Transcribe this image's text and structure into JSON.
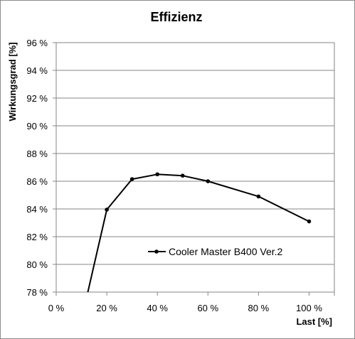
{
  "chart_data": {
    "type": "line",
    "title": "Effizienz",
    "xlabel": "Last [%]",
    "ylabel": "Wirkungsgrad [%]",
    "xlim": [
      0,
      110
    ],
    "ylim": [
      78,
      96
    ],
    "x_ticks": [
      0,
      20,
      40,
      60,
      80,
      100
    ],
    "x_tick_labels": [
      "0 %",
      "20 %",
      "40 %",
      "60 %",
      "80 %",
      "100 %"
    ],
    "y_ticks": [
      78,
      80,
      82,
      84,
      86,
      88,
      90,
      92,
      94,
      96
    ],
    "y_tick_labels": [
      "78 %",
      "80 %",
      "82 %",
      "84 %",
      "86 %",
      "88 %",
      "90 %",
      "92 %",
      "94 %",
      "96 %"
    ],
    "grid": "horizontal",
    "legend_position": "inside-center",
    "series": [
      {
        "name": "Cooler Master B400 Ver.2",
        "color": "#000000",
        "x": [
          10,
          20,
          30,
          40,
          50,
          60,
          80,
          100
        ],
        "y": [
          76.0,
          83.95,
          86.15,
          86.5,
          86.4,
          86.0,
          84.9,
          83.1
        ]
      }
    ]
  }
}
